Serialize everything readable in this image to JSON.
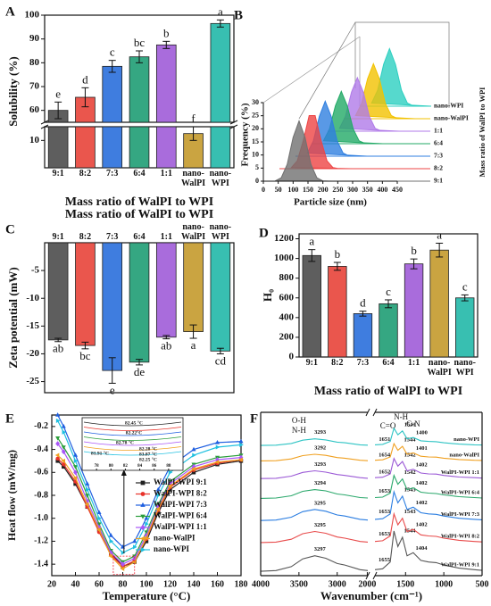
{
  "chart_data": [
    {
      "type": "bar",
      "panel": "A",
      "categories": [
        "9:1",
        "8:2",
        "7:3",
        "6:4",
        "1:1",
        "nano-WalPI",
        "nano-WPI"
      ],
      "values": [
        60,
        65.5,
        78.5,
        82.5,
        87.5,
        12.5,
        96.5
      ],
      "errors": [
        3.5,
        4,
        2.5,
        2.5,
        1.5,
        2.5,
        1.5
      ],
      "letters": [
        "e",
        "d",
        "c",
        "bc",
        "b",
        "f",
        "a"
      ],
      "colors": [
        "#4d4d4d",
        "#e8443a",
        "#2a6fdb",
        "#1f9d74",
        "#a05cd8",
        "#c49a2c",
        "#22b8a8"
      ],
      "ylabel": "Solubility (%)",
      "xlabel": "Mass ratio of WalPI to WPI",
      "ylim": [
        0,
        100
      ],
      "ybreak": [
        15,
        55
      ],
      "yticks": [
        10,
        60,
        70,
        80,
        90,
        100
      ]
    },
    {
      "type": "waterfall",
      "panel": "B",
      "xlabel": "Particle size (nm)",
      "ylabel": "Frequency (%)",
      "zlabel": "Mass ratio of WalPI to WPI",
      "xlim": [
        0,
        450
      ],
      "xticks": [
        0,
        50,
        100,
        150,
        200,
        250,
        300,
        350,
        400,
        450
      ],
      "ylim": [
        0,
        30
      ],
      "yticks": [
        0,
        5,
        10,
        15,
        20,
        25,
        30
      ],
      "x": [
        40,
        60,
        80,
        100,
        120,
        140,
        160,
        180,
        200,
        220,
        240
      ],
      "series": [
        {
          "name": "9:1",
          "color": "#707070",
          "values": [
            0.1,
            1.3,
            6.4,
            16.7,
            23,
            16.7,
            6.4,
            1.3,
            0.1,
            0,
            0
          ]
        },
        {
          "name": "8:2",
          "color": "#ee4444",
          "values": [
            0.4,
            3.0,
            10.7,
            20.3,
            20.3,
            10.7,
            3.0,
            0.4,
            0,
            0,
            0
          ]
        },
        {
          "name": "7:3",
          "color": "#2f7fe0",
          "values": [
            1.2,
            5.8,
            15.2,
            21,
            15.2,
            5.8,
            1.2,
            0.1,
            0,
            0,
            0
          ]
        },
        {
          "name": "6:4",
          "color": "#22aa66",
          "values": [
            1.1,
            5.6,
            14.5,
            20,
            14.5,
            5.6,
            1.1,
            0.1,
            0,
            0,
            0
          ]
        },
        {
          "name": "1:1",
          "color": "#b07ae8",
          "values": [
            1.1,
            5.7,
            14.9,
            20.5,
            14.9,
            5.7,
            1.1,
            0.1,
            0,
            0,
            0
          ]
        },
        {
          "name": "nano-WalPI",
          "color": "#f2c200",
          "values": [
            1.2,
            5.8,
            15.2,
            21,
            15.2,
            5.8,
            1.2,
            0.1,
            0,
            0,
            0
          ]
        },
        {
          "name": "nano-WPI",
          "color": "#2ccfc0",
          "values": [
            1.2,
            6.1,
            16,
            22,
            16,
            6.1,
            1.2,
            0.1,
            0,
            0,
            0
          ]
        }
      ]
    },
    {
      "type": "bar",
      "panel": "C",
      "xaxis": "top",
      "categories": [
        "9:1",
        "8:2",
        "7:3",
        "6:4",
        "1:1",
        "nano-WalPI",
        "nano-WPI"
      ],
      "values": [
        -17.5,
        -18.5,
        -23,
        -21.5,
        -17,
        -16,
        -19.5
      ],
      "errors": [
        0.3,
        0.6,
        2.3,
        0.5,
        0.3,
        1.2,
        0.5
      ],
      "letters": [
        "ab",
        "bc",
        "e",
        "de",
        "ab",
        "a",
        "cd"
      ],
      "colors": [
        "#4d4d4d",
        "#e8443a",
        "#2a6fdb",
        "#1f9d74",
        "#a05cd8",
        "#c49a2c",
        "#22b8a8"
      ],
      "ylabel": "Zeta potential (mW)",
      "xlabel": "Mass ratio of WalPI to WPI",
      "ylim": [
        -27,
        0
      ],
      "yticks": [
        -25,
        -20,
        -15,
        -10,
        -5
      ]
    },
    {
      "type": "bar",
      "panel": "D",
      "categories": [
        "9:1",
        "8:2",
        "7:3",
        "6:4",
        "1:1",
        "nano-WalPI",
        "nano-WPI"
      ],
      "values": [
        1030,
        920,
        440,
        540,
        945,
        1085,
        600
      ],
      "errors": [
        60,
        40,
        25,
        40,
        50,
        70,
        30
      ],
      "letters": [
        "a",
        "b",
        "d",
        "c",
        "b",
        "a",
        "c"
      ],
      "colors": [
        "#4d4d4d",
        "#e8443a",
        "#2a6fdb",
        "#1f9d74",
        "#a05cd8",
        "#c49a2c",
        "#22b8a8"
      ],
      "ylabel": "H₀",
      "xlabel": "Mass ratio of WalPI to WPI",
      "ylim": [
        0,
        1250
      ],
      "yticks": [
        0,
        200,
        400,
        600,
        800,
        1000,
        1200
      ]
    },
    {
      "type": "line",
      "panel": "E",
      "xlabel": "Temperature (°C)",
      "ylabel": "Heat flow (mW/mg)",
      "xlim": [
        20,
        180
      ],
      "xticks": [
        20,
        40,
        60,
        80,
        100,
        120,
        140,
        160,
        180
      ],
      "ylim": [
        -1.5,
        -0.1
      ],
      "yticks": [
        -1.4,
        -1.2,
        {
          "value": -1,
          "label": "-1.0"
        },
        -0.8,
        -0.6,
        -0.4,
        -0.2
      ],
      "legend": "lower right",
      "x": [
        25,
        30,
        40,
        50,
        60,
        70,
        80,
        90,
        100,
        110,
        120,
        140,
        160,
        180
      ],
      "series": [
        {
          "name": "WalPI-WPI 9:1",
          "color": "#222222",
          "marker": "square",
          "values": [
            -0.5,
            -0.55,
            -0.7,
            -0.9,
            -1.1,
            -1.3,
            -1.42,
            -1.38,
            -1.2,
            -0.95,
            -0.75,
            -0.6,
            -0.53,
            -0.5
          ]
        },
        {
          "name": "WalPI-WPI 8:2",
          "color": "#e8322a",
          "marker": "circle",
          "values": [
            -0.48,
            -0.53,
            -0.68,
            -0.9,
            -1.12,
            -1.32,
            -1.42,
            -1.37,
            -1.18,
            -0.93,
            -0.73,
            -0.58,
            -0.52,
            -0.49
          ]
        },
        {
          "name": "WalPI-WPI 7:3",
          "color": "#1f5fe0",
          "marker": "triangle-up",
          "values": [
            -0.1,
            -0.2,
            -0.45,
            -0.7,
            -0.95,
            -1.15,
            -1.25,
            -1.2,
            -1.0,
            -0.75,
            -0.55,
            -0.4,
            -0.34,
            -0.33
          ]
        },
        {
          "name": "WalPI-WPI 6:4",
          "color": "#2a9d3a",
          "marker": "triangle-down",
          "values": [
            -0.3,
            -0.38,
            -0.55,
            -0.8,
            -1.05,
            -1.28,
            -1.38,
            -1.33,
            -1.12,
            -0.88,
            -0.68,
            -0.53,
            -0.47,
            -0.45
          ]
        },
        {
          "name": "WalPI-WPI 1:1",
          "color": "#a855f7",
          "marker": "diamond",
          "values": [
            -0.35,
            -0.42,
            -0.6,
            -0.85,
            -1.08,
            -1.3,
            -1.4,
            -1.35,
            -1.15,
            -0.9,
            -0.7,
            -0.55,
            -0.49,
            -0.47
          ]
        },
        {
          "name": "nano-WalPI",
          "color": "#f0a020",
          "marker": "triangle-left",
          "values": [
            -0.45,
            -0.5,
            -0.65,
            -0.88,
            -1.1,
            -1.33,
            -1.44,
            -1.38,
            -1.17,
            -0.92,
            -0.72,
            -0.57,
            -0.51,
            -0.49
          ]
        },
        {
          "name": "nano-WPI",
          "color": "#20c0e0",
          "marker": "triangle-right",
          "values": [
            -0.15,
            -0.25,
            -0.5,
            -0.75,
            -1.0,
            -1.2,
            -1.3,
            -1.25,
            -1.05,
            -0.8,
            -0.6,
            -0.45,
            -0.38,
            -0.36
          ]
        }
      ],
      "inset": {
        "xlim": [
          76,
          90
        ],
        "xticks": [
          78,
          80,
          82,
          84,
          86,
          88
        ],
        "annotations": [
          "82.45 °C",
          "82.22°C",
          "82.78 °C",
          "81.91 °C",
          "82.28 °C",
          "83.87 °C",
          "82.25 °C"
        ]
      }
    },
    {
      "type": "spectra",
      "panel": "F",
      "xlabel": "Wavenumber (cm⁻¹)",
      "xlim": [
        4000,
        500
      ],
      "xbreak": [
        2600,
        1900
      ],
      "xticks": [
        4000,
        3500,
        3000,
        2000,
        1500,
        1000,
        500
      ],
      "ylim": [
        -0.2,
        7.2
      ],
      "annotations": [
        "O-H",
        "N-H",
        "C=O",
        "N-H",
        "C-N"
      ],
      "x": [
        4000,
        3800,
        3600,
        3450,
        3293,
        3150,
        3000,
        2900,
        2700,
        2600,
        1900,
        1800,
        1700,
        1651,
        1600,
        1541,
        1480,
        1400,
        1300,
        1200,
        1100,
        1000,
        800,
        600,
        500
      ],
      "series": [
        {
          "name": "WalPI-WPI 9:1",
          "color": "#555555",
          "peaks": [
            3297,
            1655,
            1544,
            1404
          ],
          "values": [
            0,
            0.03,
            0.21,
            0.56,
            0.7,
            0.59,
            0.35,
            0.28,
            0.07,
            0.03,
            0.07,
            0.11,
            0.42,
            1.82,
            1.12,
            1.54,
            0.7,
            0.84,
            0.49,
            0.42,
            0.39,
            0.28,
            0.14,
            0.07,
            0.04
          ]
        },
        {
          "name": "WalPI-WPI 8:2",
          "color": "#e84a4a",
          "peaks": [
            3295,
            1653,
            1543,
            1402
          ],
          "values": [
            1.3,
            1.32,
            1.45,
            1.7,
            1.8,
            1.72,
            1.55,
            1.5,
            1.35,
            1.32,
            1.35,
            1.38,
            1.6,
            2.6,
            2.1,
            2.4,
            1.8,
            1.9,
            1.65,
            1.6,
            1.58,
            1.5,
            1.4,
            1.35,
            1.33
          ]
        },
        {
          "name": "WalPI-WPI 7:3",
          "color": "#2a7de1",
          "peaks": [
            3295,
            1653,
            1543,
            1402
          ],
          "values": [
            2.3,
            2.32,
            2.45,
            2.7,
            2.8,
            2.72,
            2.55,
            2.5,
            2.35,
            2.32,
            2.35,
            2.38,
            2.6,
            3.6,
            3.1,
            3.4,
            2.8,
            2.9,
            2.65,
            2.6,
            2.58,
            2.5,
            2.4,
            2.35,
            2.33
          ]
        },
        {
          "name": "WalPI-WPI 6:4",
          "color": "#2aa86b",
          "peaks": [
            3294,
            1653,
            1542,
            1402
          ],
          "values": [
            3.3,
            3.32,
            3.42,
            3.62,
            3.7,
            3.64,
            3.5,
            3.46,
            3.34,
            3.32,
            3.34,
            3.36,
            3.54,
            4.34,
            3.94,
            4.18,
            3.7,
            3.78,
            3.58,
            3.54,
            3.52,
            3.46,
            3.38,
            3.34,
            3.32
          ]
        },
        {
          "name": "WalPI-WPI 1:1",
          "color": "#9b59d6",
          "peaks": [
            3293,
            1652,
            1542,
            1402
          ],
          "values": [
            4.2,
            4.21,
            4.31,
            4.48,
            4.55,
            4.49,
            4.38,
            4.34,
            4.24,
            4.21,
            4.24,
            4.26,
            4.41,
            5.11,
            4.76,
            4.97,
            4.55,
            4.62,
            4.45,
            4.41,
            4.4,
            4.34,
            4.27,
            4.24,
            4.22
          ]
        },
        {
          "name": "nano-WalPI",
          "color": "#f0a020",
          "peaks": [
            3292,
            1654,
            1544,
            1401
          ],
          "values": [
            5.0,
            5.01,
            5.09,
            5.24,
            5.3,
            5.25,
            5.15,
            5.12,
            5.03,
            5.01,
            5.03,
            5.05,
            5.18,
            5.78,
            5.48,
            5.66,
            5.3,
            5.36,
            5.21,
            5.18,
            5.17,
            5.12,
            5.06,
            5.03,
            5.02
          ]
        },
        {
          "name": "nano-WPI",
          "color": "#2ec4c4",
          "peaks": [
            3293,
            1651,
            1541,
            1400
          ],
          "values": [
            5.7,
            5.71,
            5.79,
            5.94,
            6.0,
            5.95,
            5.85,
            5.82,
            5.73,
            5.71,
            5.73,
            5.75,
            5.88,
            6.48,
            6.18,
            6.36,
            6.0,
            6.06,
            5.91,
            5.88,
            5.87,
            5.82,
            5.76,
            5.73,
            5.72
          ]
        }
      ]
    }
  ]
}
